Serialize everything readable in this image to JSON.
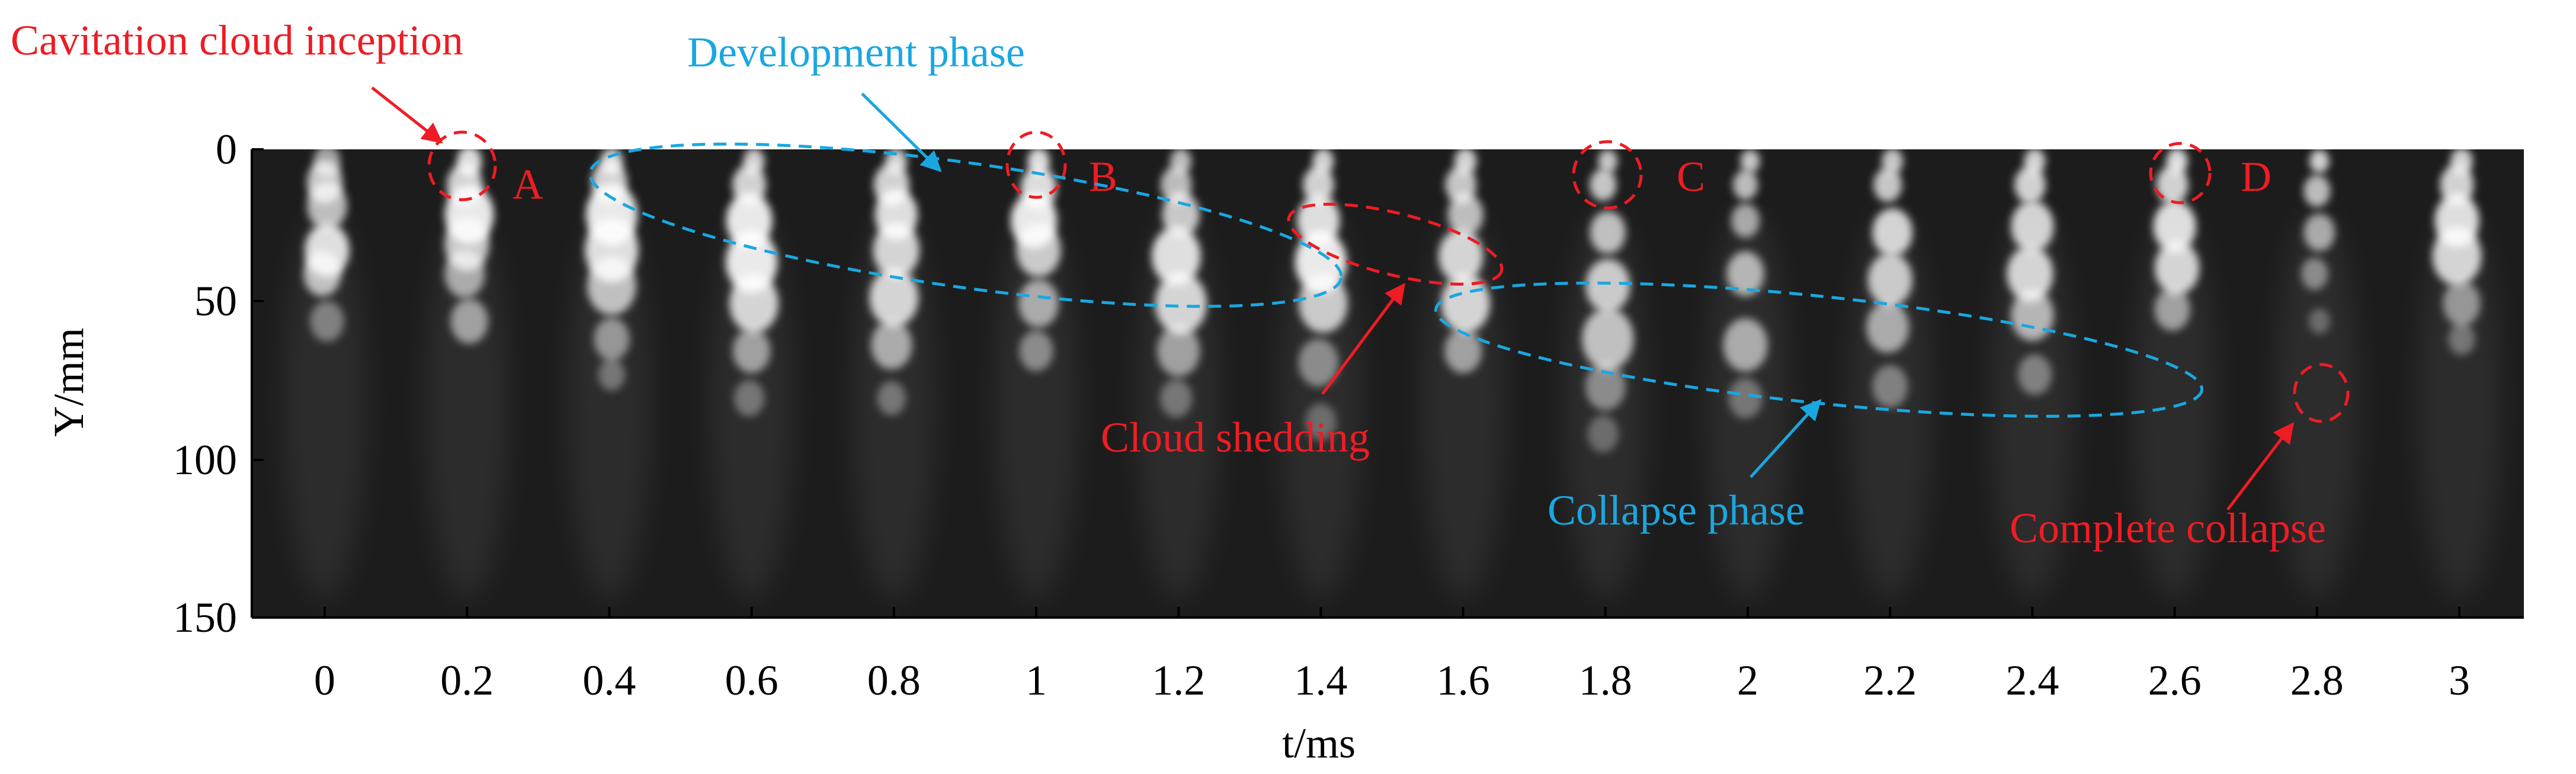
{
  "colors": {
    "annotation_red": "#ee1c24",
    "annotation_blue": "#1aa7e0",
    "photo_background": "#1c1c1c",
    "axis": "#000000"
  },
  "axes": {
    "x_label": "t/ms",
    "y_label": "Y/mm",
    "x_ticks": [
      "0",
      "0.2",
      "0.4",
      "0.6",
      "0.8",
      "1",
      "1.2",
      "1.4",
      "1.6",
      "1.8",
      "2",
      "2.2",
      "2.4",
      "2.6",
      "2.8",
      "3"
    ],
    "y_ticks": [
      "0",
      "50",
      "100",
      "150"
    ]
  },
  "annotations": {
    "inception": "Cavitation cloud inception",
    "development": "Development phase",
    "shedding": "Cloud shedding",
    "collapse_phase": "Collapse phase",
    "complete_collapse": "Complete collapse",
    "marker_a": "A",
    "marker_b": "B",
    "marker_c": "C",
    "marker_d": "D"
  }
}
